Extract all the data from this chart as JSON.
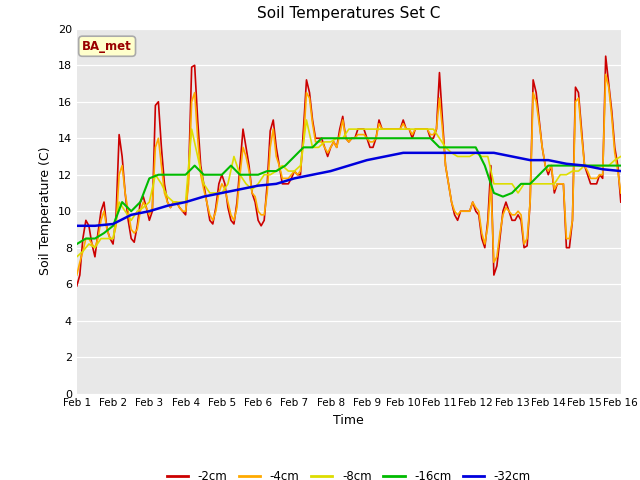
{
  "title": "Soil Temperatures Set C",
  "xlabel": "Time",
  "ylabel": "Soil Temperature (C)",
  "ylim": [
    0,
    20
  ],
  "xlim": [
    0,
    15
  ],
  "xtick_labels": [
    "Feb 1",
    "Feb 2",
    "Feb 3",
    "Feb 4",
    "Feb 5",
    "Feb 6",
    "Feb 7",
    "Feb 8",
    "Feb 9",
    "Feb 10",
    "Feb 11",
    "Feb 12",
    "Feb 13",
    "Feb 14",
    "Feb 15",
    "Feb 16"
  ],
  "ytick_values": [
    0,
    2,
    4,
    6,
    8,
    10,
    12,
    14,
    16,
    18,
    20
  ],
  "annotation_text": "BA_met",
  "fig_bg_color": "#ffffff",
  "plot_bg_color": "#e8e8e8",
  "grid_color": "#ffffff",
  "series": {
    "-2cm": {
      "color": "#cc0000",
      "lw": 1.2,
      "x": [
        0.0,
        0.083,
        0.167,
        0.25,
        0.333,
        0.417,
        0.5,
        0.583,
        0.667,
        0.75,
        0.833,
        0.917,
        1.0,
        1.083,
        1.167,
        1.25,
        1.333,
        1.417,
        1.5,
        1.583,
        1.667,
        1.75,
        1.833,
        1.917,
        2.0,
        2.083,
        2.167,
        2.25,
        2.333,
        2.417,
        2.5,
        2.583,
        2.667,
        2.75,
        2.833,
        2.917,
        3.0,
        3.083,
        3.167,
        3.25,
        3.333,
        3.417,
        3.5,
        3.583,
        3.667,
        3.75,
        3.833,
        3.917,
        4.0,
        4.083,
        4.167,
        4.25,
        4.333,
        4.417,
        4.5,
        4.583,
        4.667,
        4.75,
        4.833,
        4.917,
        5.0,
        5.083,
        5.167,
        5.25,
        5.333,
        5.417,
        5.5,
        5.583,
        5.667,
        5.75,
        5.833,
        5.917,
        6.0,
        6.083,
        6.167,
        6.25,
        6.333,
        6.417,
        6.5,
        6.583,
        6.667,
        6.75,
        6.833,
        6.917,
        7.0,
        7.083,
        7.167,
        7.25,
        7.333,
        7.417,
        7.5,
        7.583,
        7.667,
        7.75,
        7.833,
        7.917,
        8.0,
        8.083,
        8.167,
        8.25,
        8.333,
        8.417,
        8.5,
        8.583,
        8.667,
        8.75,
        8.833,
        8.917,
        9.0,
        9.083,
        9.167,
        9.25,
        9.333,
        9.417,
        9.5,
        9.583,
        9.667,
        9.75,
        9.833,
        9.917,
        10.0,
        10.083,
        10.167,
        10.25,
        10.333,
        10.417,
        10.5,
        10.583,
        10.667,
        10.75,
        10.833,
        10.917,
        11.0,
        11.083,
        11.167,
        11.25,
        11.333,
        11.417,
        11.5,
        11.583,
        11.667,
        11.75,
        11.833,
        11.917,
        12.0,
        12.083,
        12.167,
        12.25,
        12.333,
        12.417,
        12.5,
        12.583,
        12.667,
        12.75,
        12.833,
        12.917,
        13.0,
        13.083,
        13.167,
        13.25,
        13.333,
        13.417,
        13.5,
        13.583,
        13.667,
        13.75,
        13.833,
        13.917,
        14.0,
        14.083,
        14.167,
        14.25,
        14.333,
        14.417,
        14.5,
        14.583,
        14.667,
        14.75,
        14.833,
        14.917,
        15.0
      ],
      "y": [
        5.9,
        6.5,
        8.5,
        9.5,
        9.2,
        8.2,
        7.5,
        8.8,
        10.0,
        10.5,
        9.0,
        8.5,
        8.2,
        9.8,
        14.2,
        13.0,
        11.0,
        9.5,
        8.5,
        8.3,
        9.2,
        10.5,
        10.8,
        10.2,
        9.5,
        10.0,
        15.8,
        16.0,
        13.5,
        11.5,
        10.5,
        10.2,
        10.5,
        10.5,
        10.2,
        10.0,
        9.8,
        12.0,
        17.9,
        18.0,
        15.0,
        12.5,
        11.5,
        10.5,
        9.5,
        9.3,
        10.2,
        11.5,
        12.0,
        11.5,
        10.2,
        9.5,
        9.3,
        10.5,
        12.5,
        14.5,
        13.5,
        12.5,
        11.0,
        10.5,
        9.5,
        9.2,
        9.5,
        11.5,
        14.4,
        15.0,
        13.5,
        12.5,
        11.5,
        11.5,
        11.5,
        11.8,
        12.2,
        12.0,
        12.0,
        14.5,
        17.2,
        16.5,
        15.0,
        14.0,
        14.0,
        14.0,
        13.5,
        13.0,
        13.5,
        13.8,
        13.5,
        14.5,
        15.2,
        14.0,
        13.8,
        14.0,
        14.0,
        14.5,
        14.5,
        14.5,
        14.0,
        13.5,
        13.5,
        14.0,
        15.0,
        14.5,
        14.5,
        14.5,
        14.5,
        14.5,
        14.5,
        14.5,
        15.0,
        14.5,
        14.5,
        14.0,
        14.5,
        14.5,
        14.5,
        14.5,
        14.5,
        14.0,
        14.0,
        14.5,
        17.6,
        15.0,
        12.5,
        11.5,
        10.5,
        9.8,
        9.5,
        10.0,
        10.0,
        10.0,
        10.0,
        10.5,
        10.0,
        9.8,
        8.5,
        8.0,
        9.5,
        12.5,
        6.5,
        7.0,
        8.5,
        10.0,
        10.5,
        10.0,
        9.5,
        9.5,
        9.8,
        9.5,
        8.0,
        8.1,
        10.5,
        17.2,
        16.5,
        15.0,
        13.5,
        12.5,
        12.0,
        12.5,
        11.0,
        11.5,
        11.5,
        11.5,
        8.0,
        8.0,
        9.5,
        16.8,
        16.5,
        14.5,
        12.5,
        12.0,
        11.5,
        11.5,
        11.5,
        12.0,
        11.8,
        18.5,
        17.0,
        15.5,
        13.5,
        12.5,
        10.5
      ]
    },
    "-4cm": {
      "color": "#ffaa00",
      "lw": 1.2,
      "x": [
        0.0,
        0.083,
        0.167,
        0.25,
        0.333,
        0.417,
        0.5,
        0.583,
        0.667,
        0.75,
        0.833,
        0.917,
        1.0,
        1.083,
        1.167,
        1.25,
        1.333,
        1.417,
        1.5,
        1.583,
        1.667,
        1.75,
        1.833,
        1.917,
        2.0,
        2.083,
        2.167,
        2.25,
        2.333,
        2.417,
        2.5,
        2.583,
        2.667,
        2.75,
        2.833,
        2.917,
        3.0,
        3.083,
        3.167,
        3.25,
        3.333,
        3.417,
        3.5,
        3.583,
        3.667,
        3.75,
        3.833,
        3.917,
        4.0,
        4.083,
        4.167,
        4.25,
        4.333,
        4.417,
        4.5,
        4.583,
        4.667,
        4.75,
        4.833,
        4.917,
        5.0,
        5.083,
        5.167,
        5.25,
        5.333,
        5.417,
        5.5,
        5.583,
        5.667,
        5.75,
        5.833,
        5.917,
        6.0,
        6.083,
        6.167,
        6.25,
        6.333,
        6.417,
        6.5,
        6.583,
        6.667,
        6.75,
        6.833,
        6.917,
        7.0,
        7.083,
        7.167,
        7.25,
        7.333,
        7.417,
        7.5,
        7.583,
        7.667,
        7.75,
        7.833,
        7.917,
        8.0,
        8.083,
        8.167,
        8.25,
        8.333,
        8.417,
        8.5,
        8.583,
        8.667,
        8.75,
        8.833,
        8.917,
        9.0,
        9.083,
        9.167,
        9.25,
        9.333,
        9.417,
        9.5,
        9.583,
        9.667,
        9.75,
        9.833,
        9.917,
        10.0,
        10.083,
        10.167,
        10.25,
        10.333,
        10.417,
        10.5,
        10.583,
        10.667,
        10.75,
        10.833,
        10.917,
        11.0,
        11.083,
        11.167,
        11.25,
        11.333,
        11.417,
        11.5,
        11.583,
        11.667,
        11.75,
        11.833,
        11.917,
        12.0,
        12.083,
        12.167,
        12.25,
        12.333,
        12.417,
        12.5,
        12.583,
        12.667,
        12.75,
        12.833,
        12.917,
        13.0,
        13.083,
        13.167,
        13.25,
        13.333,
        13.417,
        13.5,
        13.583,
        13.667,
        13.75,
        13.833,
        13.917,
        14.0,
        14.083,
        14.167,
        14.25,
        14.333,
        14.417,
        14.5,
        14.583,
        14.667,
        14.75,
        14.833,
        14.917,
        15.0
      ],
      "y": [
        6.5,
        7.2,
        7.8,
        8.5,
        8.5,
        8.2,
        8.0,
        8.5,
        9.5,
        10.0,
        9.0,
        8.5,
        8.5,
        9.2,
        12.0,
        12.5,
        11.0,
        10.0,
        9.0,
        8.8,
        9.0,
        10.0,
        10.5,
        10.2,
        9.8,
        10.2,
        13.5,
        14.0,
        12.5,
        11.0,
        10.5,
        10.2,
        10.5,
        10.5,
        10.2,
        10.0,
        10.0,
        11.5,
        16.0,
        16.5,
        14.0,
        12.0,
        11.2,
        10.5,
        9.8,
        9.5,
        10.0,
        11.0,
        11.5,
        11.2,
        10.5,
        9.8,
        9.5,
        10.2,
        12.0,
        13.5,
        13.0,
        12.2,
        11.0,
        10.8,
        10.0,
        9.8,
        9.8,
        11.0,
        13.5,
        14.5,
        13.0,
        12.5,
        11.8,
        11.8,
        11.8,
        12.0,
        12.2,
        12.0,
        12.2,
        13.8,
        16.5,
        16.2,
        14.8,
        13.8,
        13.8,
        13.8,
        13.5,
        13.2,
        13.5,
        13.8,
        13.5,
        14.2,
        15.0,
        14.0,
        13.8,
        14.0,
        14.0,
        14.2,
        14.2,
        14.2,
        14.0,
        13.8,
        13.8,
        14.0,
        14.8,
        14.5,
        14.5,
        14.5,
        14.5,
        14.5,
        14.5,
        14.5,
        14.8,
        14.5,
        14.5,
        14.2,
        14.5,
        14.5,
        14.5,
        14.5,
        14.5,
        14.2,
        14.2,
        14.5,
        16.2,
        14.5,
        12.5,
        11.5,
        10.5,
        10.0,
        9.8,
        10.0,
        10.0,
        10.0,
        10.0,
        10.5,
        10.2,
        10.0,
        8.8,
        8.2,
        9.2,
        11.5,
        7.2,
        7.5,
        8.8,
        9.8,
        10.2,
        10.0,
        9.8,
        9.8,
        10.0,
        9.8,
        8.2,
        8.5,
        10.5,
        16.5,
        16.0,
        14.8,
        13.5,
        12.5,
        12.2,
        12.5,
        11.2,
        11.5,
        11.5,
        11.5,
        8.5,
        8.5,
        9.5,
        16.0,
        16.2,
        14.2,
        12.5,
        12.2,
        11.8,
        11.8,
        11.8,
        12.0,
        12.0,
        17.5,
        16.8,
        15.2,
        13.2,
        12.2,
        11.0
      ]
    },
    "-8cm": {
      "color": "#dddd00",
      "lw": 1.2,
      "x": [
        0.0,
        0.167,
        0.333,
        0.5,
        0.667,
        0.833,
        1.0,
        1.167,
        1.333,
        1.5,
        1.667,
        1.833,
        2.0,
        2.167,
        2.333,
        2.5,
        2.667,
        2.833,
        3.0,
        3.167,
        3.333,
        3.5,
        3.667,
        3.833,
        4.0,
        4.167,
        4.333,
        4.5,
        4.667,
        4.833,
        5.0,
        5.167,
        5.333,
        5.5,
        5.667,
        5.833,
        6.0,
        6.167,
        6.333,
        6.5,
        6.667,
        6.833,
        7.0,
        7.167,
        7.333,
        7.5,
        7.667,
        7.833,
        8.0,
        8.167,
        8.333,
        8.5,
        8.667,
        8.833,
        9.0,
        9.167,
        9.333,
        9.5,
        9.667,
        9.833,
        10.0,
        10.167,
        10.333,
        10.5,
        10.667,
        10.833,
        11.0,
        11.167,
        11.333,
        11.5,
        11.667,
        11.833,
        12.0,
        12.167,
        12.333,
        12.5,
        12.667,
        12.833,
        13.0,
        13.167,
        13.333,
        13.5,
        13.667,
        13.833,
        14.0,
        14.167,
        14.333,
        14.5,
        14.667,
        14.833,
        15.0
      ],
      "y": [
        7.5,
        7.8,
        8.2,
        8.0,
        8.5,
        8.5,
        8.5,
        10.5,
        10.0,
        9.5,
        10.0,
        10.2,
        10.5,
        12.0,
        11.5,
        10.8,
        10.5,
        10.5,
        10.5,
        14.5,
        13.0,
        11.5,
        11.0,
        11.0,
        11.0,
        11.5,
        13.0,
        12.0,
        11.5,
        11.2,
        11.5,
        12.0,
        12.0,
        12.2,
        12.5,
        12.2,
        12.2,
        12.5,
        15.0,
        13.5,
        13.5,
        13.8,
        13.8,
        14.0,
        14.0,
        14.5,
        14.5,
        14.5,
        14.5,
        14.5,
        14.5,
        14.5,
        14.5,
        14.5,
        14.5,
        14.5,
        14.5,
        14.5,
        14.5,
        14.5,
        14.0,
        13.5,
        13.2,
        13.0,
        13.0,
        13.0,
        13.2,
        13.0,
        13.0,
        11.5,
        11.5,
        11.5,
        11.5,
        11.0,
        11.5,
        11.5,
        11.5,
        11.5,
        11.5,
        11.5,
        12.0,
        12.0,
        12.2,
        12.2,
        12.5,
        12.5,
        12.5,
        12.5,
        12.5,
        12.8,
        13.0
      ]
    },
    "-16cm": {
      "color": "#00bb00",
      "lw": 1.5,
      "x": [
        0.0,
        0.25,
        0.5,
        0.75,
        1.0,
        1.25,
        1.5,
        1.75,
        2.0,
        2.25,
        2.5,
        2.75,
        3.0,
        3.25,
        3.5,
        3.75,
        4.0,
        4.25,
        4.5,
        4.75,
        5.0,
        5.25,
        5.5,
        5.75,
        6.0,
        6.25,
        6.5,
        6.75,
        7.0,
        7.25,
        7.5,
        7.75,
        8.0,
        8.25,
        8.5,
        8.75,
        9.0,
        9.25,
        9.5,
        9.75,
        10.0,
        10.25,
        10.5,
        10.75,
        11.0,
        11.25,
        11.5,
        11.75,
        12.0,
        12.25,
        12.5,
        12.75,
        13.0,
        13.25,
        13.5,
        13.75,
        14.0,
        14.25,
        14.5,
        14.75,
        15.0
      ],
      "y": [
        8.2,
        8.5,
        8.5,
        8.8,
        9.2,
        10.5,
        10.0,
        10.5,
        11.8,
        12.0,
        12.0,
        12.0,
        12.0,
        12.5,
        12.0,
        12.0,
        12.0,
        12.5,
        12.0,
        12.0,
        12.0,
        12.2,
        12.2,
        12.5,
        13.0,
        13.5,
        13.5,
        14.0,
        14.0,
        14.0,
        14.0,
        14.0,
        14.0,
        14.0,
        14.0,
        14.0,
        14.0,
        14.0,
        14.0,
        14.0,
        13.5,
        13.5,
        13.5,
        13.5,
        13.5,
        12.5,
        11.0,
        10.8,
        11.0,
        11.5,
        11.5,
        12.0,
        12.5,
        12.5,
        12.5,
        12.5,
        12.5,
        12.5,
        12.5,
        12.5,
        12.5
      ]
    },
    "-32cm": {
      "color": "#0000dd",
      "lw": 1.8,
      "x": [
        0.0,
        0.5,
        1.0,
        1.5,
        2.0,
        2.5,
        3.0,
        3.5,
        4.0,
        4.5,
        5.0,
        5.5,
        6.0,
        6.5,
        7.0,
        7.5,
        8.0,
        8.5,
        9.0,
        9.5,
        10.0,
        10.5,
        11.0,
        11.5,
        12.0,
        12.5,
        13.0,
        13.5,
        14.0,
        14.5,
        15.0
      ],
      "y": [
        9.2,
        9.2,
        9.3,
        9.8,
        10.0,
        10.3,
        10.5,
        10.8,
        11.0,
        11.2,
        11.4,
        11.5,
        11.8,
        12.0,
        12.2,
        12.5,
        12.8,
        13.0,
        13.2,
        13.2,
        13.2,
        13.2,
        13.2,
        13.2,
        13.0,
        12.8,
        12.8,
        12.6,
        12.5,
        12.3,
        12.2
      ]
    }
  },
  "legend": {
    "entries": [
      "-2cm",
      "-4cm",
      "-8cm",
      "-16cm",
      "-32cm"
    ],
    "colors": [
      "#cc0000",
      "#ffaa00",
      "#dddd00",
      "#00bb00",
      "#0000dd"
    ]
  }
}
